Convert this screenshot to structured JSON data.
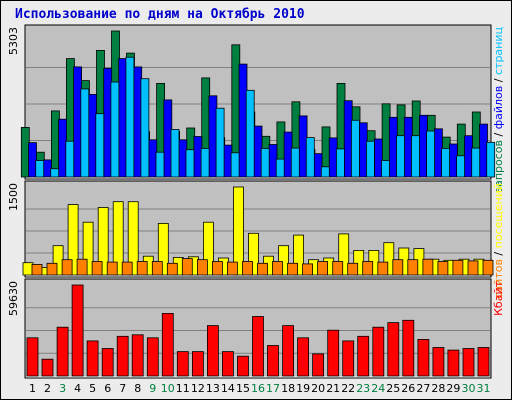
{
  "title": "Использование по дням на Октябрь 2010",
  "colors": {
    "hits": "#008040",
    "files": "#0000ff",
    "pages": "#00c0ff",
    "visits": "#ffff00",
    "sites": "#ff8000",
    "kbytes": "#ff0000",
    "weekend_day": "#008040",
    "weekday_day": "#000000",
    "panel_bg": "#c0c0c0"
  },
  "chart_data": {
    "type": "bar",
    "title": "Использование по дням на Октябрь 2010",
    "categories": [
      "1",
      "2",
      "3",
      "4",
      "5",
      "6",
      "7",
      "8",
      "9",
      "10",
      "11",
      "12",
      "13",
      "14",
      "15",
      "16",
      "17",
      "18",
      "19",
      "20",
      "21",
      "22",
      "23",
      "24",
      "25",
      "26",
      "27",
      "28",
      "29",
      "30",
      "31"
    ],
    "weekend_days": [
      "3",
      "9",
      "10",
      "16",
      "17",
      "23",
      "24",
      "30",
      "31"
    ],
    "panels": [
      {
        "id": "requests",
        "ymax_label": "5303",
        "ymax": 5303,
        "legend": [
          {
            "key": "hits",
            "label": "запросов",
            "color": "#008040"
          },
          {
            "key": "files",
            "label": "файлов",
            "color": "#0000ff"
          },
          {
            "key": "pages",
            "label": "страниц",
            "color": "#00c0ff"
          }
        ],
        "separator": " / ",
        "series": [
          {
            "key": "hits",
            "values": [
              1800,
              900,
              2400,
              4300,
              3500,
              4600,
              5303,
              4500,
              1640,
              3400,
              1650,
              1780,
              3600,
              1430,
              4800,
              2360,
              1480,
              2000,
              2730,
              1000,
              1820,
              3400,
              2550,
              1680,
              2660,
              2620,
              2760,
              2240,
              1450,
              1920,
              2360
            ]
          },
          {
            "key": "files",
            "values": [
              1250,
              620,
              2100,
              4000,
              3000,
              3950,
              4300,
              4000,
              1350,
              2800,
              1350,
              1470,
              2950,
              1160,
              4100,
              1850,
              1180,
              1630,
              2220,
              850,
              1420,
              2770,
              1970,
              1380,
              2170,
              2170,
              2240,
              1750,
              1200,
              1500,
              1920
            ]
          },
          {
            "key": "pages",
            "values": [
              600,
              300,
              1300,
              3200,
              2300,
              3450,
              4350,
              3570,
              900,
              1730,
              990,
              1040,
              2500,
              880,
              3150,
              1040,
              650,
              1050,
              1430,
              370,
              1020,
              2060,
              1300,
              600,
              1500,
              1500,
              1670,
              1040,
              770,
              1050,
              1260
            ]
          }
        ]
      },
      {
        "id": "visits",
        "ymax_label": "1500",
        "ymax": 1500,
        "legend": [
          {
            "key": "sites",
            "label": "сайтов",
            "color": "#ff8000"
          },
          {
            "key": "visits",
            "label": "посещений",
            "color": "#ffff00"
          }
        ],
        "separator": " / ",
        "series": [
          {
            "key": "visits",
            "values": [
              210,
              130,
              500,
              1200,
              900,
              1150,
              1250,
              1250,
              320,
              880,
              300,
              310,
              900,
              290,
              1500,
              710,
              320,
              500,
              680,
              260,
              290,
              700,
              420,
              420,
              550,
              460,
              450,
              270,
              250,
              270,
              270
            ]
          },
          {
            "key": "sites",
            "values": [
              180,
              200,
              260,
              270,
              230,
              220,
              220,
              230,
              230,
              200,
              280,
              260,
              230,
              220,
              230,
              200,
              230,
              200,
              190,
              230,
              230,
              200,
              230,
              220,
              260,
              260,
              270,
              230,
              250,
              240,
              250
            ]
          }
        ]
      },
      {
        "id": "kbytes",
        "ymax_label": "59630",
        "ymax": 59630,
        "legend": [
          {
            "key": "kbytes",
            "label": "Кбайт",
            "color": "#ff0000"
          }
        ],
        "separator": "",
        "series": [
          {
            "key": "kbytes",
            "values": [
              25000,
              11000,
              32000,
              59630,
              23000,
              18000,
              26000,
              27000,
              25000,
              41000,
              16000,
              16000,
              33000,
              16000,
              13000,
              39000,
              20000,
              33000,
              25000,
              14500,
              30000,
              23000,
              26000,
              32000,
              35000,
              36500,
              24000,
              18700,
              17000,
              18000,
              18700
            ]
          }
        ]
      }
    ]
  }
}
